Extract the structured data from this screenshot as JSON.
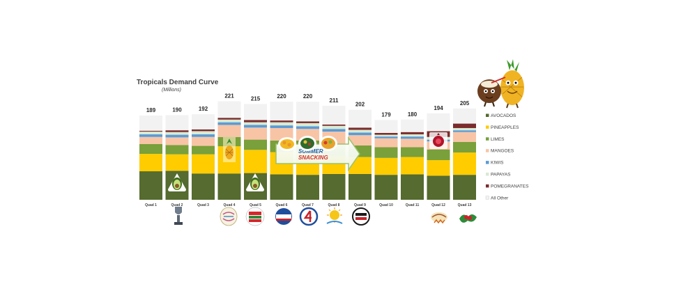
{
  "chart_data": {
    "type": "bar",
    "stacked": true,
    "title": "Tropicals Demand Curve",
    "subtitle": "(Millions)",
    "categories": [
      "Quad 1",
      "Quad 2",
      "Quad 3",
      "Quad 4",
      "Quad 5",
      "Quad 6",
      "Quad 7",
      "Quad 8",
      "Quad 9",
      "Quad 10",
      "Quad 11",
      "Quad 12",
      "Quad 13"
    ],
    "totals": [
      189,
      190,
      192,
      221,
      215,
      220,
      220,
      211,
      202,
      179,
      180,
      194,
      205
    ],
    "series": [
      {
        "name": "AVOCADOS",
        "color": "#556b2f",
        "values": [
          64,
          65,
          59,
          59,
          60,
          57,
          56,
          58,
          58,
          56,
          57,
          54,
          56
        ]
      },
      {
        "name": "PINEAPPLES",
        "color": "#ffcc00",
        "values": [
          39,
          37,
          43,
          61,
          52,
          50,
          51,
          40,
          38,
          38,
          39,
          35,
          50
        ]
      },
      {
        "name": "LIMES",
        "color": "#79a03a",
        "values": [
          22,
          21,
          19,
          21,
          23,
          26,
          26,
          25,
          26,
          24,
          22,
          24,
          24
        ]
      },
      {
        "name": "MANGOES",
        "color": "#f8c4a6",
        "values": [
          16,
          17,
          20,
          27,
          27,
          28,
          26,
          30,
          23,
          20,
          19,
          18,
          22
        ]
      },
      {
        "name": "KIWIS",
        "color": "#5b9bd5",
        "values": [
          6,
          6,
          6,
          6,
          6,
          6,
          6,
          6,
          6,
          4,
          5,
          4,
          4
        ]
      },
      {
        "name": "PAPAYAS",
        "color": "#d9ead3",
        "values": [
          6,
          6,
          7,
          6,
          6,
          7,
          7,
          7,
          6,
          4,
          5,
          6,
          5
        ]
      },
      {
        "name": "POMEGRANATES",
        "color": "#7b2c2c",
        "values": [
          2,
          4,
          4,
          4,
          5,
          4,
          4,
          3,
          5,
          4,
          5,
          13,
          10
        ]
      },
      {
        "name": "All Other",
        "color": "#f2f2f2",
        "values": [
          34,
          34,
          34,
          37,
          36,
          42,
          44,
          42,
          40,
          29,
          28,
          40,
          34
        ]
      }
    ],
    "legend": "right",
    "annotation": [
      "SUMMER",
      "SNACKING"
    ],
    "holiday_icons": [
      "trophy-icon",
      "happy-easter-badge",
      "cinco-de-mayo-badge",
      "memorial-day-badge",
      "fourth-of-july-badge",
      "summer-sun-badge",
      "labor-day-badge",
      "thanksgiving-badge",
      "holly-icon"
    ]
  }
}
